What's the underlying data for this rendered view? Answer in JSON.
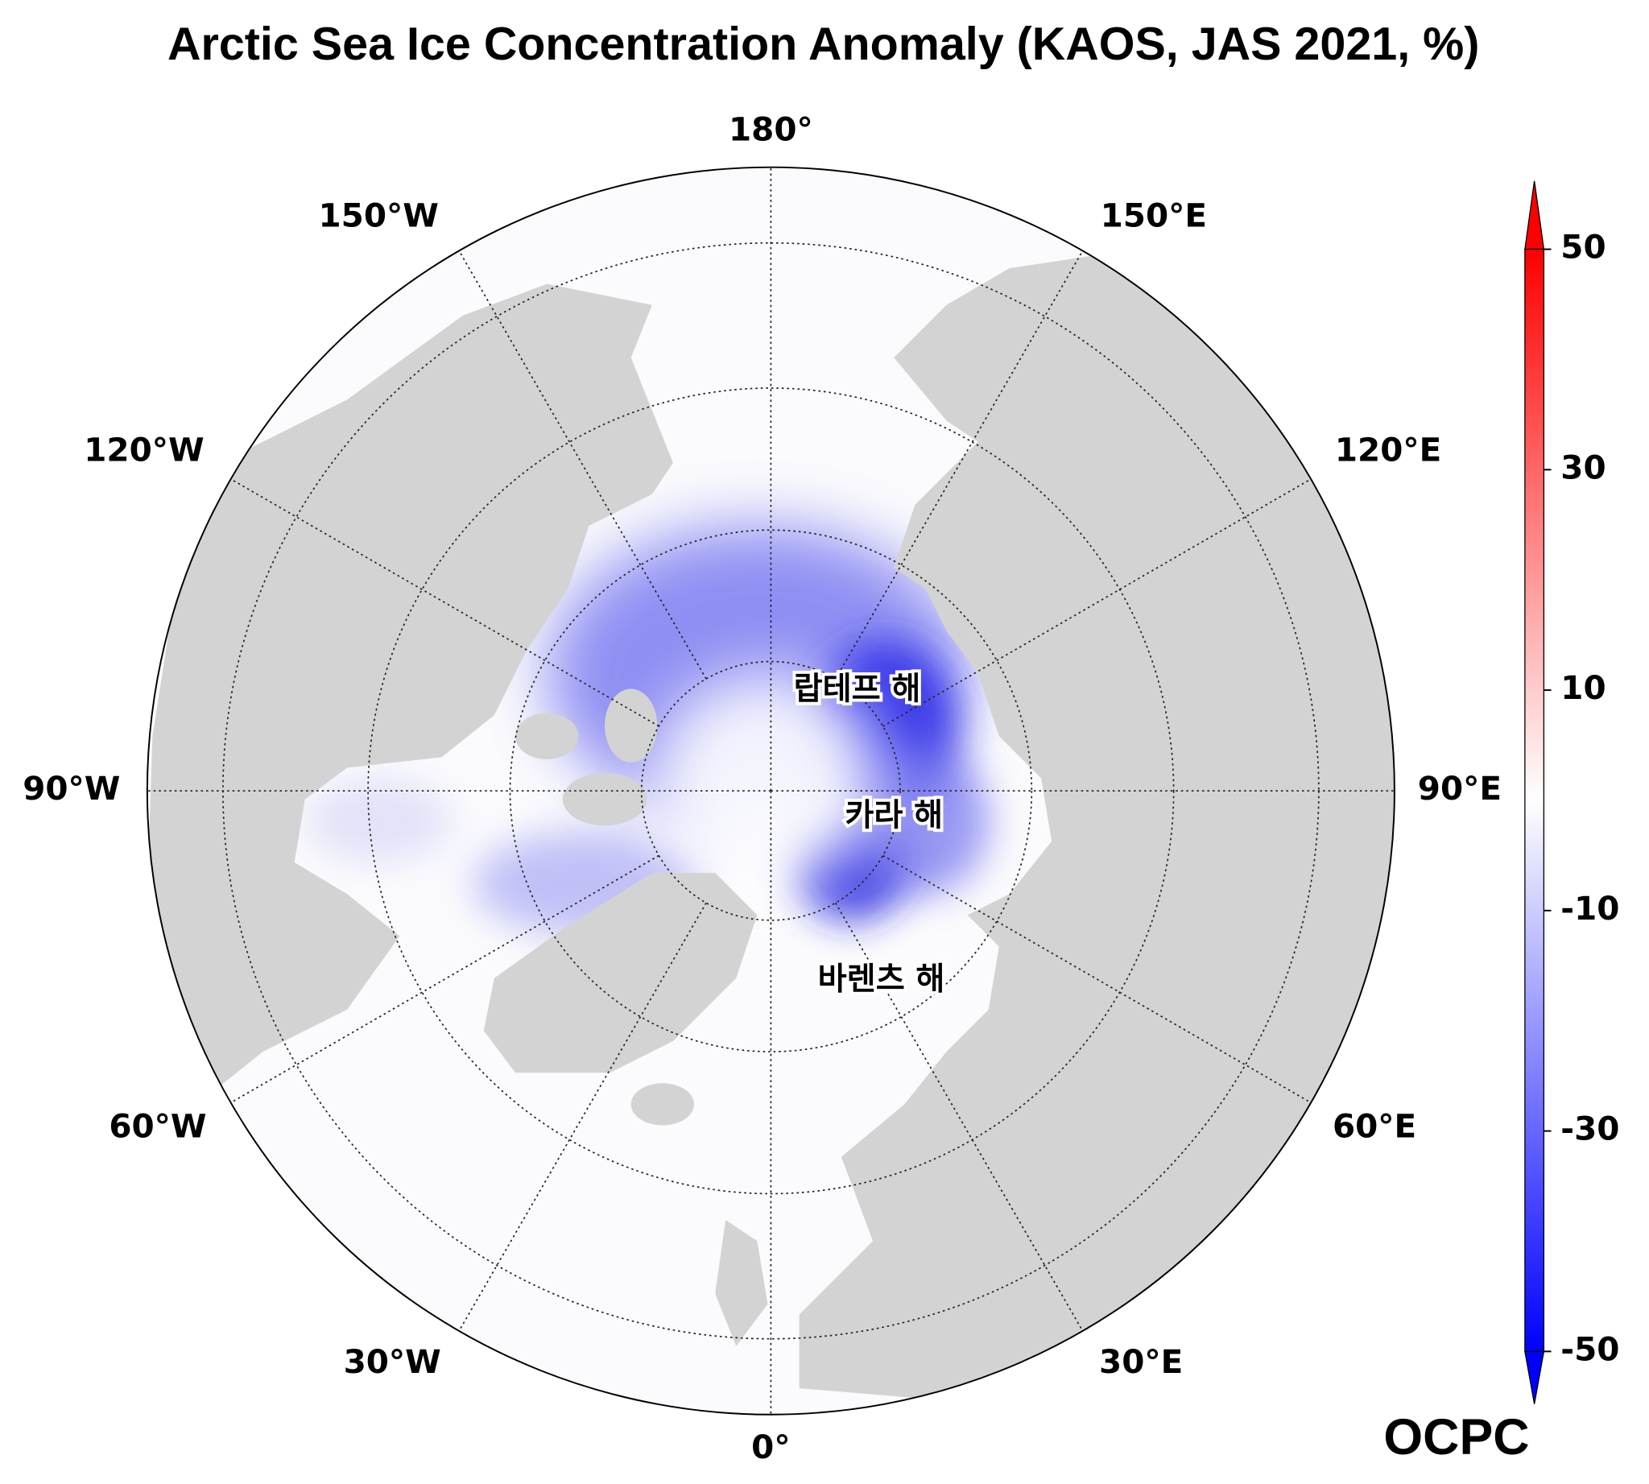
{
  "title": "Arctic Sea Ice Concentration Anomaly (KAOS, JAS 2021, %)",
  "longitude_labels": [
    "180°",
    "150°E",
    "120°E",
    "90°E",
    "60°E",
    "30°E",
    "0°",
    "30°W",
    "60°W",
    "90°W",
    "120°W",
    "150°W"
  ],
  "regions": [
    "랍테프 해",
    "카라 해",
    "바렌츠 해"
  ],
  "colorbar": {
    "lim": [
      -50,
      50
    ],
    "ticks": [
      50,
      30,
      10,
      -10,
      -30,
      -50
    ]
  },
  "logo": "OCPC"
}
